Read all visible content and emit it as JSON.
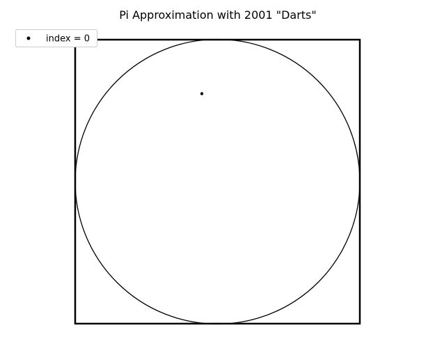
{
  "chart_data": {
    "type": "scatter",
    "title": "Pi Approximation with 2001 \"Darts\"",
    "xlim": [
      -1,
      1
    ],
    "ylim": [
      -1,
      1
    ],
    "grid": false,
    "axes_visible": false,
    "aspect": "equal",
    "shapes": [
      {
        "kind": "square",
        "x_range": [
          -1,
          1
        ],
        "y_range": [
          -1,
          1
        ],
        "color": "#000000"
      },
      {
        "kind": "circle",
        "center": [
          0,
          0
        ],
        "radius": 1,
        "color": "#000000"
      }
    ],
    "series": [
      {
        "name": "index = 0",
        "color": "#000000",
        "marker": "dot",
        "x": [
          -0.11
        ],
        "y": [
          0.62
        ]
      }
    ],
    "legend": {
      "placement": "upper-left",
      "entries": [
        "index = 0"
      ]
    }
  }
}
